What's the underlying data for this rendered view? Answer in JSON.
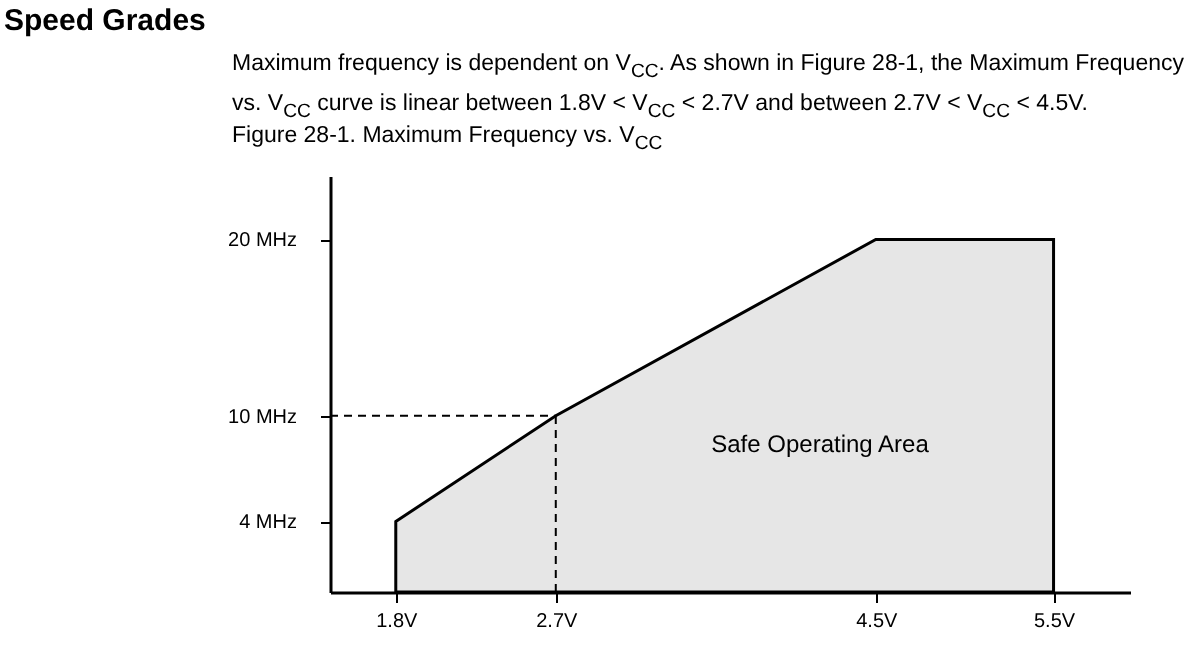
{
  "chart_data": {
    "type": "area",
    "title": "Figure 28-1.   Maximum Frequency vs. V$_{CC}$",
    "subtitle": "Maximum frequency is dependent on V$_{CC}$. As shown in Figure 28-1, the Maximum Frequency vs. V$_{CC}$ curve is linear between 1.8V < V$_{CC}$ < 2.7V and between 2.7V < V$_{CC}$ < 4.5V.",
    "annotations": [
      "Speed Grades",
      "Safe Operating Area"
    ],
    "x": [
      1.8,
      2.7,
      4.5,
      5.5
    ],
    "series": [
      {
        "color": "#e6e6e6",
        "values": [
          4,
          10,
          20,
          20
        ]
      }
    ],
    "xlim": [
      1.43,
      5.93
    ],
    "ylim": [
      0,
      23.6
    ],
    "xticks": [
      {
        "value": 1.8,
        "label": "1.8V"
      },
      {
        "value": 2.7,
        "label": "2.7V"
      },
      {
        "value": 4.5,
        "label": "4.5V"
      },
      {
        "value": 5.5,
        "label": "5.5V"
      }
    ],
    "yticks": [
      {
        "value": 4,
        "label": "4 MHz"
      },
      {
        "value": 10,
        "label": "10 MHz"
      },
      {
        "value": 20,
        "label": "20 MHz"
      }
    ],
    "ref_lines": [
      {
        "axis": "x",
        "value": 2.7,
        "line_style": "dashed"
      },
      {
        "axis": "y",
        "value": 10,
        "line_style": "dashed"
      }
    ],
    "grid": false
  }
}
